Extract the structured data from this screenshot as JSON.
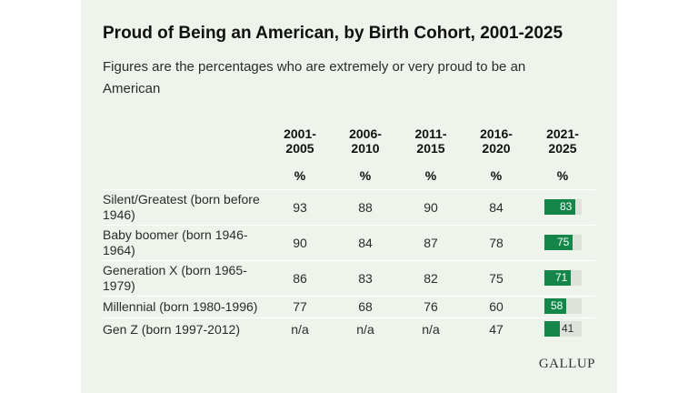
{
  "title": "Proud of Being an American, by Birth Cohort, 2001-2025",
  "subtitle": "Figures are the percentages who are extremely or very proud to be an American",
  "brand": "GALLUP",
  "colors": {
    "background": "#eef4ec",
    "bar": "#14864a",
    "bar_track": "#dde3db"
  },
  "chart_data": {
    "type": "table",
    "title": "Proud of Being an American, by Birth Cohort, 2001-2025",
    "subtitle": "Figures are the percentages who are extremely or very proud to be an American",
    "columns": [
      {
        "line1": "2001-",
        "line2": "2005",
        "unit": "%"
      },
      {
        "line1": "2006-",
        "line2": "2010",
        "unit": "%"
      },
      {
        "line1": "2011-",
        "line2": "2015",
        "unit": "%"
      },
      {
        "line1": "2016-",
        "line2": "2020",
        "unit": "%"
      },
      {
        "line1": "2021-",
        "line2": "2025",
        "unit": "%"
      }
    ],
    "rows": [
      {
        "label": "Silent/Greatest (born before 1946)",
        "values": [
          "93",
          "88",
          "90",
          "84"
        ],
        "latest": 83
      },
      {
        "label": "Baby boomer (born 1946-1964)",
        "values": [
          "90",
          "84",
          "87",
          "78"
        ],
        "latest": 75
      },
      {
        "label": "Generation X (born 1965-1979)",
        "values": [
          "86",
          "83",
          "82",
          "75"
        ],
        "latest": 71
      },
      {
        "label": "Millennial (born 1980-1996)",
        "values": [
          "77",
          "68",
          "76",
          "60"
        ],
        "latest": 58
      },
      {
        "label": "Gen Z (born 1997-2012)",
        "values": [
          "n/a",
          "n/a",
          "n/a",
          "47"
        ],
        "latest": 41
      }
    ]
  }
}
